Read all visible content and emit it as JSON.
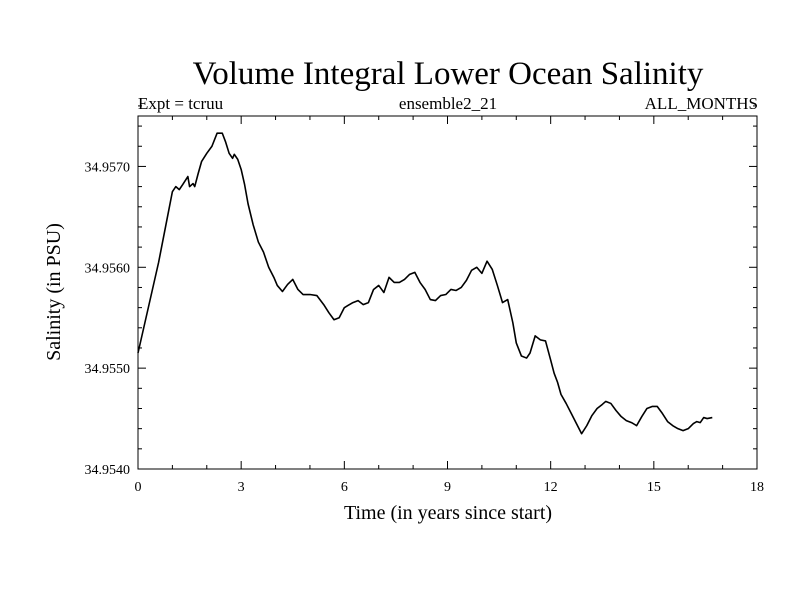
{
  "chart_data": {
    "type": "line",
    "title": "Volume Integral Lower Ocean Salinity",
    "subtitle_left": "Expt = tcruu",
    "subtitle_center": "ensemble2_21",
    "subtitle_right": "ALL_MONTHS",
    "xlabel": "Time (in years since start)",
    "ylabel": "Salinity (in PSU)",
    "xlim": [
      0,
      18
    ],
    "ylim": [
      34.954,
      34.9575
    ],
    "x_ticks": [
      0,
      3,
      6,
      9,
      12,
      15,
      18
    ],
    "x_tick_labels": [
      "0",
      "3",
      "6",
      "9",
      "12",
      "15",
      "18"
    ],
    "y_ticks": [
      34.954,
      34.955,
      34.956,
      34.957
    ],
    "y_tick_labels": [
      "34.9540",
      "34.9550",
      "34.9560",
      "34.9570"
    ],
    "grid": false,
    "series": [
      {
        "name": "salinity",
        "x": [
          0.0,
          0.2,
          0.4,
          0.6,
          0.8,
          1.0,
          1.1,
          1.2,
          1.3,
          1.45,
          1.5,
          1.6,
          1.65,
          1.75,
          1.85,
          2.0,
          2.15,
          2.3,
          2.45,
          2.55,
          2.65,
          2.75,
          2.8,
          2.9,
          3.0,
          3.1,
          3.2,
          3.35,
          3.5,
          3.65,
          3.8,
          3.95,
          4.05,
          4.2,
          4.35,
          4.5,
          4.65,
          4.8,
          5.0,
          5.2,
          5.4,
          5.55,
          5.7,
          5.85,
          6.0,
          6.1,
          6.25,
          6.4,
          6.55,
          6.7,
          6.85,
          7.0,
          7.15,
          7.3,
          7.45,
          7.6,
          7.75,
          7.9,
          8.05,
          8.2,
          8.35,
          8.5,
          8.65,
          8.8,
          8.95,
          9.1,
          9.25,
          9.4,
          9.55,
          9.7,
          9.85,
          10.0,
          10.15,
          10.3,
          10.45,
          10.6,
          10.75,
          10.9,
          11.0,
          11.15,
          11.3,
          11.4,
          11.55,
          11.7,
          11.85,
          12.0,
          12.1,
          12.2,
          12.3,
          12.45,
          12.6,
          12.75,
          12.9,
          13.05,
          13.2,
          13.35,
          13.5,
          13.6,
          13.75,
          13.9,
          14.05,
          14.2,
          14.35,
          14.5,
          14.65,
          14.8,
          14.95,
          15.1,
          15.25,
          15.4,
          15.55,
          15.7,
          15.85,
          16.0,
          16.15,
          16.25,
          16.35,
          16.45,
          16.55,
          16.7
        ],
        "y": [
          34.95515,
          34.95545,
          34.95575,
          34.95605,
          34.9564,
          34.95675,
          34.9568,
          34.95677,
          34.95682,
          34.9569,
          34.9568,
          34.95683,
          34.9568,
          34.95693,
          34.95705,
          34.95713,
          34.9572,
          34.95733,
          34.95733,
          34.95724,
          34.95713,
          34.95708,
          34.95712,
          34.95707,
          34.95697,
          34.95682,
          34.95663,
          34.95642,
          34.95625,
          34.95615,
          34.956,
          34.9559,
          34.95582,
          34.95576,
          34.95583,
          34.95588,
          34.95578,
          34.95573,
          34.95573,
          34.95572,
          34.95563,
          34.95555,
          34.95548,
          34.9555,
          34.9556,
          34.95562,
          34.95565,
          34.95567,
          34.95563,
          34.95565,
          34.95578,
          34.95582,
          34.95575,
          34.9559,
          34.95585,
          34.95585,
          34.95588,
          34.95593,
          34.95595,
          34.95585,
          34.95578,
          34.95568,
          34.95567,
          34.95572,
          34.95573,
          34.95578,
          34.95577,
          34.9558,
          34.95587,
          34.95597,
          34.956,
          34.95594,
          34.95606,
          34.95598,
          34.95582,
          34.95565,
          34.95568,
          34.95545,
          34.95525,
          34.95512,
          34.9551,
          34.95515,
          34.95532,
          34.95528,
          34.95527,
          34.95508,
          34.95495,
          34.95486,
          34.95474,
          34.95465,
          34.95455,
          34.95445,
          34.95435,
          34.95443,
          34.95453,
          34.9546,
          34.95464,
          34.95467,
          34.95465,
          34.95458,
          34.95452,
          34.95448,
          34.95446,
          34.95443,
          34.95452,
          34.9546,
          34.95462,
          34.95462,
          34.95455,
          34.95447,
          34.95443,
          34.9544,
          34.95438,
          34.9544,
          34.95445,
          34.95447,
          34.95446,
          34.95451,
          34.9545,
          34.95451
        ]
      }
    ]
  }
}
